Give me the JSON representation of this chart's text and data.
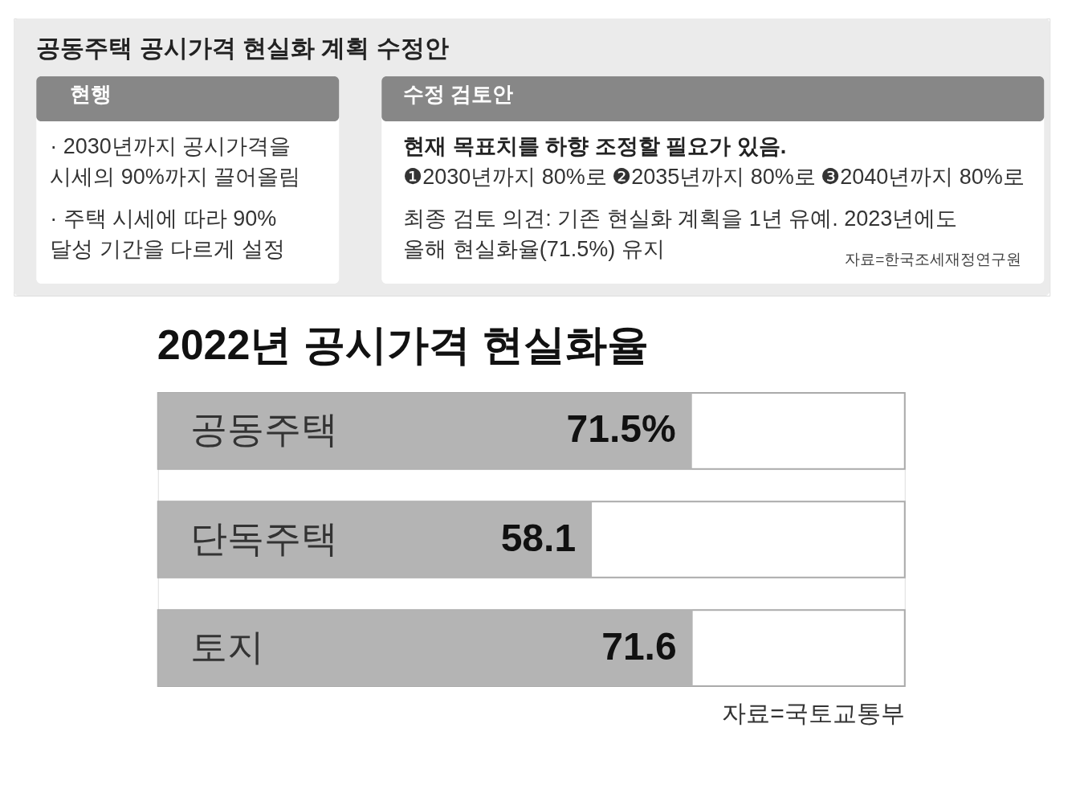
{
  "chart_data": [
    {
      "type": "other",
      "title": "공동주택 공시가격 현실화 계획 수정안",
      "annotations": [
        "현행",
        "· 2030년까지 공시가격을\n  시세의 90%까지 끌어올림",
        "· 주택 시세에 따라 90%\n  달성 기간을 다르게 설정",
        "수정 검토안",
        "현재 목표치를 하향 조정할 필요가 있음.",
        "❶2030년까지 80%로",
        "❷2035년까지 80%로",
        "❸2040년까지 80%로",
        "최종 검토 의견: 기존 현실화 계획을 1년 유예. 2023년에도\n올해 현실화율(71.5%) 유지",
        "자료=한국조세재정연구원"
      ]
    },
    {
      "type": "bar",
      "orientation": "horizontal",
      "title": "2022년 공시가격 현실화율",
      "categories": [
        "공동주택",
        "단독주택",
        "토지"
      ],
      "values": [
        71.5,
        58.1,
        71.6
      ],
      "value_labels": [
        "71.5%",
        "58.1",
        "71.6"
      ],
      "color": "#b4b4b4",
      "xlim": [
        0,
        100
      ],
      "tick_labels": false,
      "annotations": [
        "자료=국토교통부"
      ]
    }
  ]
}
